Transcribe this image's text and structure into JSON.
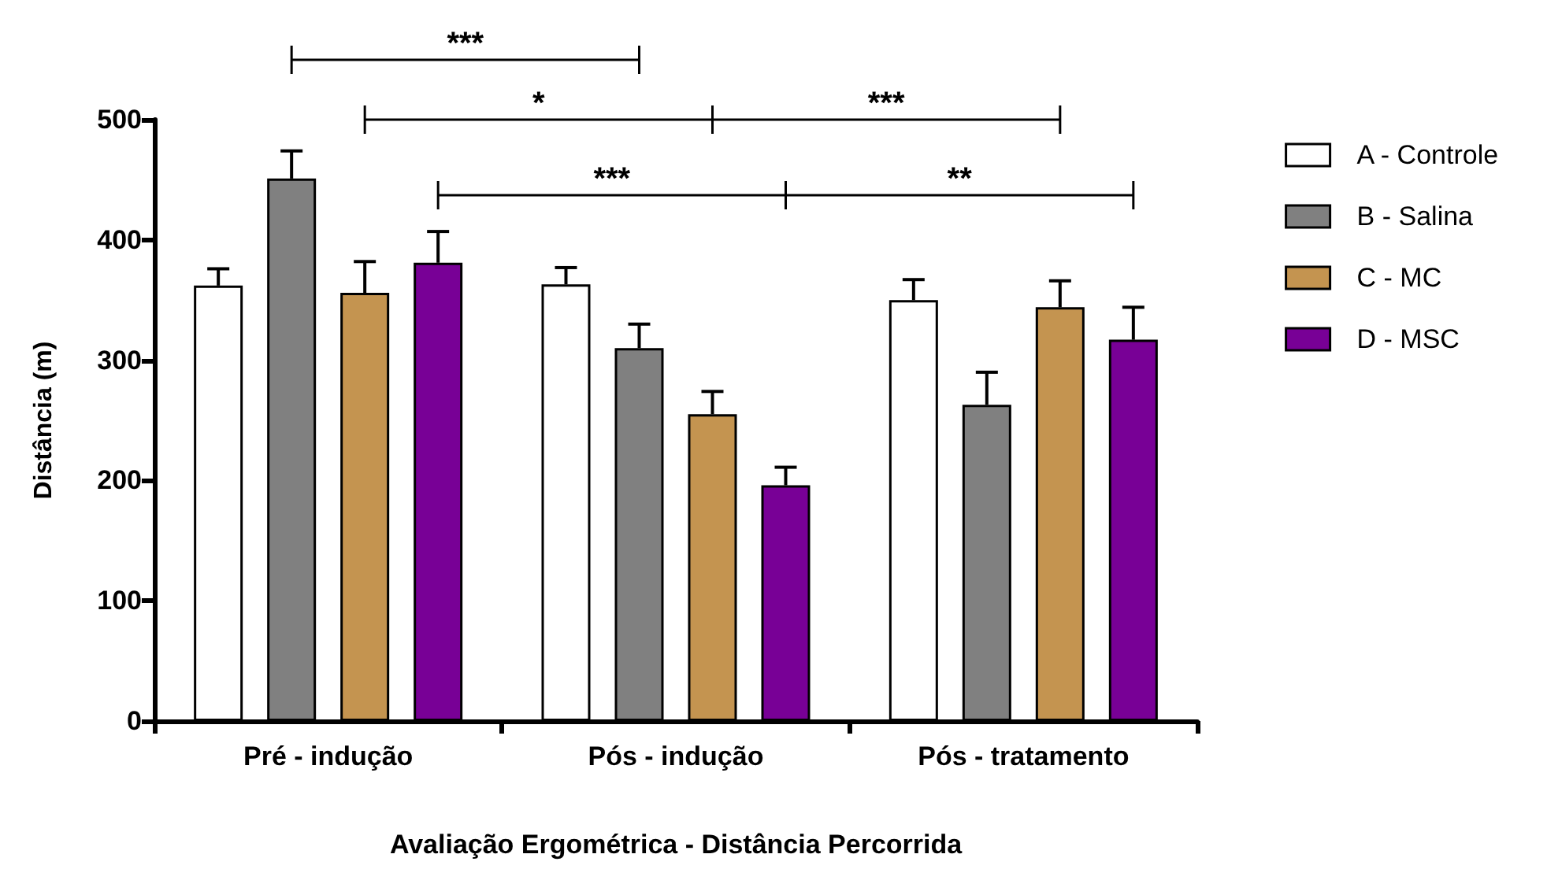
{
  "chart_data": {
    "type": "bar",
    "xlabel": "Avaliação Ergométrica - Distância Percorrida",
    "ylabel": "Distância (m)",
    "categories": [
      "Pré - indução",
      "Pós - indução",
      "Pós - tratamento"
    ],
    "series": [
      {
        "name": "A - Controle",
        "color": "#ffffff",
        "values": [
          362,
          363,
          350
        ],
        "errors": [
          14,
          14,
          17
        ]
      },
      {
        "name": "B - Salina",
        "color": "#808080",
        "values": [
          451,
          310,
          263
        ],
        "errors": [
          23,
          20,
          27
        ]
      },
      {
        "name": "C - MC",
        "color": "#c49450",
        "values": [
          356,
          255,
          344
        ],
        "errors": [
          26,
          19,
          22
        ]
      },
      {
        "name": "D - MSC",
        "color": "#780096",
        "values": [
          381,
          196,
          317
        ],
        "errors": [
          26,
          15,
          27
        ]
      }
    ],
    "ylim": [
      0,
      500
    ],
    "yticks": [
      0,
      100,
      200,
      300,
      400,
      500
    ],
    "grid": false,
    "legend": "right",
    "annotations": [
      "***",
      "*",
      "***",
      "***",
      "**"
    ]
  }
}
